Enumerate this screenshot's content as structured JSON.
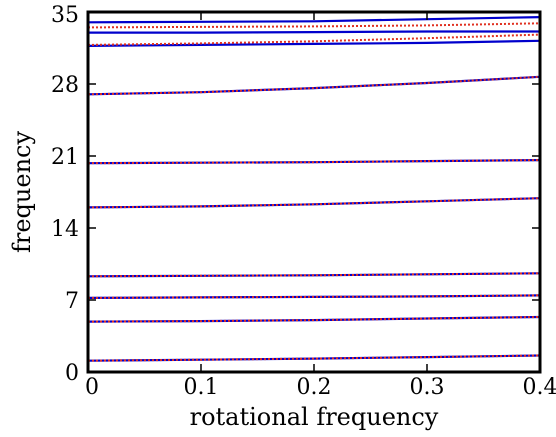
{
  "chart_data": {
    "type": "line",
    "title": "",
    "xlabel": "rotational frequency",
    "ylabel": "frequency",
    "xlim": [
      0,
      0.4
    ],
    "ylim": [
      0,
      35
    ],
    "xticks": [
      0,
      0.1,
      0.2,
      0.3,
      0.4
    ],
    "yticks": [
      0,
      7,
      14,
      21,
      28,
      35
    ],
    "xtick_labels": [
      "0",
      "0.1",
      "0.2",
      "0.3",
      "0.4"
    ],
    "ytick_labels": [
      "0",
      "7",
      "14",
      "21",
      "28",
      "35"
    ],
    "grid": false,
    "legend": "none",
    "x": [
      0,
      0.1,
      0.2,
      0.3,
      0.4
    ],
    "series": [
      {
        "style": "solid",
        "color": "#0000cc",
        "values": [
          1.1,
          1.2,
          1.3,
          1.45,
          1.6
        ]
      },
      {
        "style": "dotted",
        "color": "#e03020",
        "values": [
          1.1,
          1.2,
          1.3,
          1.45,
          1.6
        ]
      },
      {
        "style": "solid",
        "color": "#0000cc",
        "values": [
          4.9,
          4.95,
          5.05,
          5.2,
          5.35
        ]
      },
      {
        "style": "dotted",
        "color": "#e03020",
        "values": [
          4.9,
          4.95,
          5.05,
          5.2,
          5.35
        ]
      },
      {
        "style": "solid",
        "color": "#0000cc",
        "values": [
          7.2,
          7.25,
          7.3,
          7.35,
          7.45
        ]
      },
      {
        "style": "dotted",
        "color": "#e03020",
        "values": [
          7.2,
          7.25,
          7.3,
          7.35,
          7.45
        ]
      },
      {
        "style": "solid",
        "color": "#0000cc",
        "values": [
          9.3,
          9.35,
          9.4,
          9.5,
          9.6
        ]
      },
      {
        "style": "dotted",
        "color": "#e03020",
        "values": [
          9.3,
          9.35,
          9.4,
          9.5,
          9.6
        ]
      },
      {
        "style": "solid",
        "color": "#0000cc",
        "values": [
          16.0,
          16.1,
          16.3,
          16.6,
          16.9
        ]
      },
      {
        "style": "dotted",
        "color": "#e03020",
        "values": [
          16.0,
          16.1,
          16.3,
          16.6,
          16.9
        ]
      },
      {
        "style": "solid",
        "color": "#0000cc",
        "values": [
          20.3,
          20.35,
          20.4,
          20.5,
          20.6
        ]
      },
      {
        "style": "dotted",
        "color": "#e03020",
        "values": [
          20.3,
          20.35,
          20.4,
          20.5,
          20.6
        ]
      },
      {
        "style": "solid",
        "color": "#0000cc",
        "values": [
          27.0,
          27.2,
          27.6,
          28.1,
          28.7
        ]
      },
      {
        "style": "dotted",
        "color": "#e03020",
        "values": [
          27.0,
          27.2,
          27.6,
          28.1,
          28.7
        ]
      },
      {
        "style": "solid",
        "color": "#0000cc",
        "values": [
          31.7,
          31.8,
          31.9,
          32.0,
          32.2
        ]
      },
      {
        "style": "dotted",
        "color": "#e03020",
        "values": [
          31.8,
          31.95,
          32.15,
          32.45,
          32.8
        ]
      },
      {
        "style": "dotted",
        "color": "#e03020",
        "values": [
          33.5,
          33.55,
          33.6,
          33.7,
          33.9
        ]
      },
      {
        "style": "solid",
        "color": "#0000cc",
        "values": [
          33.0,
          33.0,
          33.05,
          33.1,
          33.1
        ]
      },
      {
        "style": "solid",
        "color": "#0000cc",
        "values": [
          34.0,
          34.05,
          34.1,
          34.3,
          34.5
        ]
      }
    ]
  }
}
